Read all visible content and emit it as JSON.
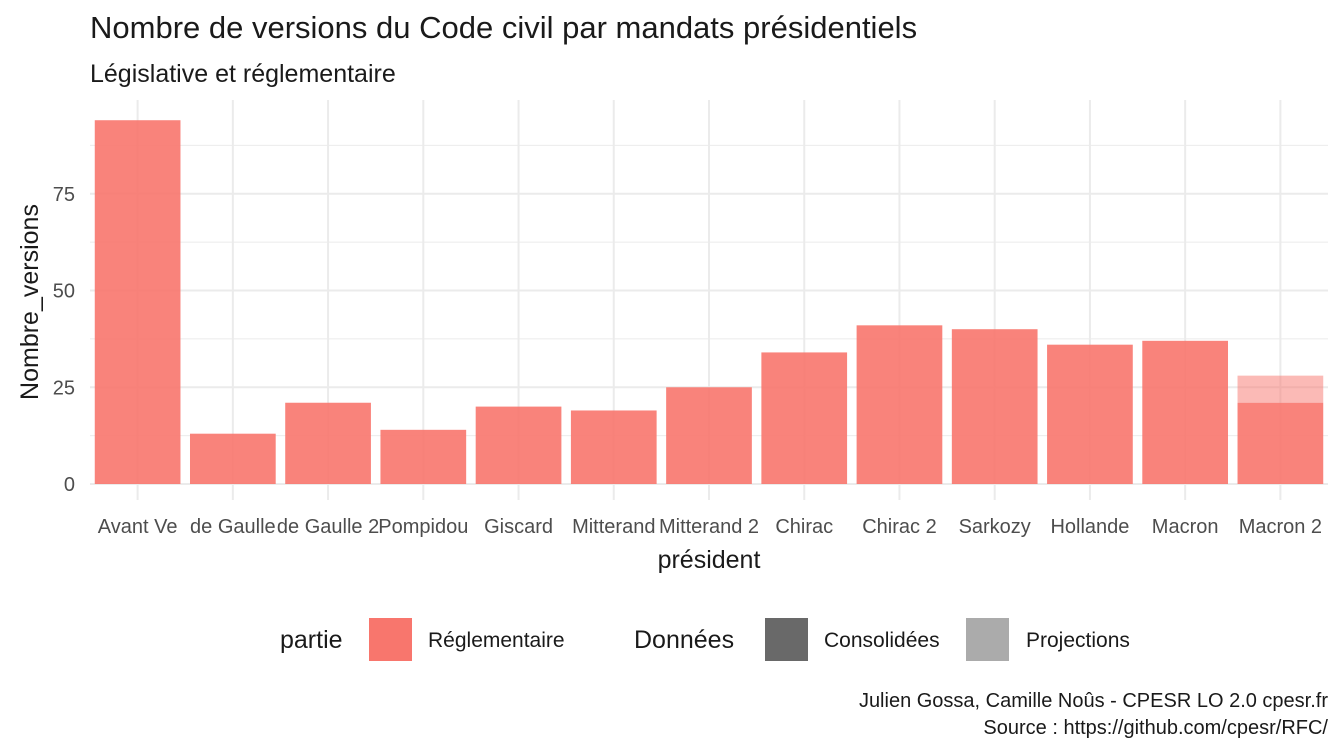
{
  "title": "Nombre de versions du Code civil par mandats présidentiels",
  "subtitle": "Législative et réglementaire",
  "caption": {
    "line1": "Julien Gossa, Camille Noûs - CPESR LO 2.0 cpesr.fr",
    "line2": "Source : https://github.com/cpesr/RFC/"
  },
  "legend": {
    "fill_title": "partie",
    "fill_items": [
      {
        "label": "Réglementaire",
        "color": "#f8766d"
      }
    ],
    "alpha_title": "Données",
    "alpha_items": [
      {
        "label": "Consolidées",
        "color": "#696969"
      },
      {
        "label": "Projections",
        "color": "#ababab"
      }
    ]
  },
  "chart_data": {
    "type": "bar",
    "xlabel": "président",
    "ylabel": "Nombre_versions",
    "ylim": [
      0,
      97.5
    ],
    "yticks": [
      0,
      25,
      50,
      75
    ],
    "grid": true,
    "legend_position": "bottom",
    "categories": [
      "Avant Ve",
      "de Gaulle",
      "de Gaulle 2",
      "Pompidou",
      "Giscard",
      "Mitterand",
      "Mitterand 2",
      "Chirac",
      "Chirac 2",
      "Sarkozy",
      "Hollande",
      "Macron",
      "Macron 2"
    ],
    "series": [
      {
        "name": "Consolidées",
        "values": [
          94,
          13,
          21,
          14,
          20,
          19,
          25,
          34,
          41,
          40,
          36,
          37,
          21
        ]
      },
      {
        "name": "Projections",
        "values": [
          0,
          0,
          0,
          0,
          0,
          0,
          0,
          0,
          0,
          0,
          0,
          0,
          7
        ]
      }
    ],
    "colors": {
      "bar": "#f8766d",
      "grid": "#ebebeb",
      "axis_text": "#4d4d4d"
    }
  }
}
